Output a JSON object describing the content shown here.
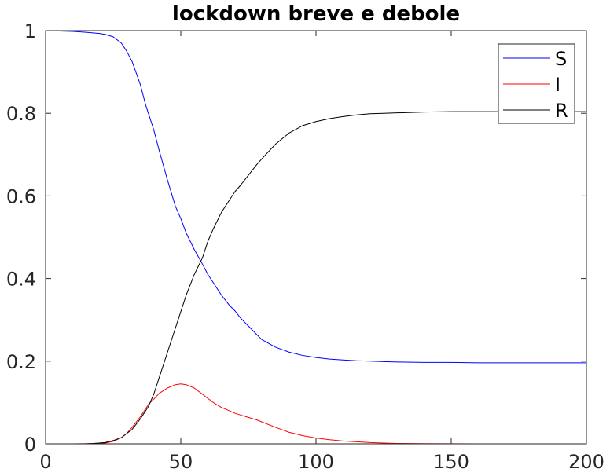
{
  "chart_data": {
    "type": "line",
    "title": "lockdown breve e debole",
    "xlabel": "",
    "ylabel": "",
    "xlim": [
      0,
      200
    ],
    "ylim": [
      0,
      1
    ],
    "x_ticks": [
      0,
      50,
      100,
      150,
      200
    ],
    "y_ticks": [
      0,
      0.2,
      0.4,
      0.6,
      0.8,
      1
    ],
    "x_tick_labels": [
      "0",
      "50",
      "100",
      "150",
      "200"
    ],
    "y_tick_labels": [
      "0",
      "0.2",
      "0.4",
      "0.6",
      "0.8",
      "1"
    ],
    "grid": false,
    "legend_position": "top-right",
    "series": [
      {
        "name": "S",
        "color": "#0000ff",
        "x": [
          0,
          5,
          10,
          15,
          20,
          22,
          25,
          28,
          30,
          32,
          35,
          37,
          38,
          40,
          42,
          45,
          48,
          50,
          52,
          55,
          58,
          60,
          62,
          65,
          68,
          70,
          72,
          75,
          78,
          80,
          85,
          90,
          95,
          100,
          105,
          110,
          115,
          120,
          125,
          130,
          140,
          150,
          160,
          170,
          180,
          190,
          200
        ],
        "y": [
          1.0,
          0.999,
          0.998,
          0.996,
          0.993,
          0.991,
          0.985,
          0.97,
          0.95,
          0.925,
          0.87,
          0.82,
          0.8,
          0.76,
          0.71,
          0.64,
          0.575,
          0.545,
          0.51,
          0.47,
          0.435,
          0.41,
          0.39,
          0.36,
          0.335,
          0.322,
          0.305,
          0.285,
          0.265,
          0.252,
          0.234,
          0.222,
          0.214,
          0.209,
          0.205,
          0.203,
          0.201,
          0.2,
          0.199,
          0.198,
          0.197,
          0.197,
          0.196,
          0.196,
          0.196,
          0.196,
          0.196
        ]
      },
      {
        "name": "I",
        "color": "#ff0000",
        "x": [
          0,
          10,
          20,
          22,
          25,
          28,
          30,
          32,
          35,
          38,
          40,
          42,
          45,
          48,
          50,
          52,
          55,
          58,
          60,
          62,
          65,
          68,
          70,
          72,
          75,
          78,
          80,
          85,
          90,
          95,
          100,
          105,
          110,
          115,
          120,
          125,
          130,
          140,
          150,
          160,
          170,
          180,
          190,
          200
        ],
        "y": [
          0,
          0,
          0.001,
          0.002,
          0.006,
          0.015,
          0.025,
          0.04,
          0.065,
          0.095,
          0.108,
          0.122,
          0.135,
          0.143,
          0.145,
          0.143,
          0.135,
          0.12,
          0.11,
          0.1,
          0.088,
          0.08,
          0.074,
          0.07,
          0.064,
          0.058,
          0.053,
          0.04,
          0.028,
          0.02,
          0.014,
          0.01,
          0.007,
          0.005,
          0.003,
          0.002,
          0.001,
          0.0005,
          0.0002,
          0.0001,
          0,
          0,
          0,
          0
        ]
      },
      {
        "name": "R",
        "color": "#000000",
        "x": [
          0,
          10,
          15,
          20,
          22,
          25,
          28,
          30,
          32,
          35,
          38,
          40,
          42,
          45,
          48,
          50,
          52,
          55,
          58,
          60,
          62,
          65,
          68,
          70,
          72,
          75,
          78,
          80,
          85,
          90,
          95,
          100,
          105,
          110,
          115,
          120,
          125,
          130,
          140,
          150,
          160,
          170,
          180,
          190,
          200
        ],
        "y": [
          0,
          0,
          0,
          0.002,
          0.003,
          0.008,
          0.015,
          0.025,
          0.035,
          0.06,
          0.09,
          0.12,
          0.16,
          0.22,
          0.28,
          0.32,
          0.36,
          0.41,
          0.45,
          0.49,
          0.52,
          0.56,
          0.59,
          0.61,
          0.625,
          0.65,
          0.675,
          0.69,
          0.725,
          0.752,
          0.77,
          0.78,
          0.787,
          0.792,
          0.796,
          0.799,
          0.8,
          0.801,
          0.803,
          0.804,
          0.804,
          0.804,
          0.804,
          0.804,
          0.804
        ]
      }
    ]
  }
}
